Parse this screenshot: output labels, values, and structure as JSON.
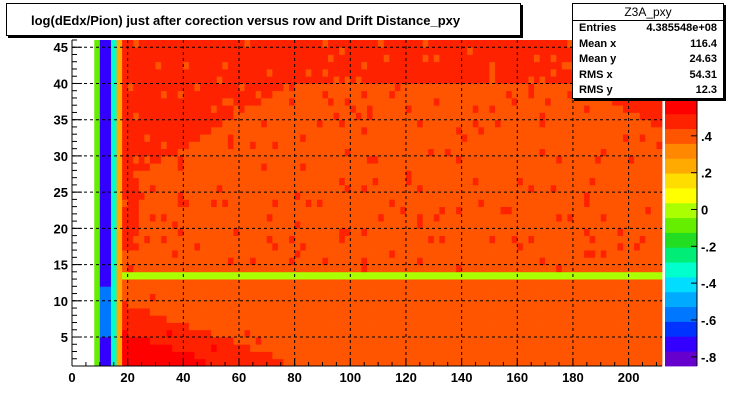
{
  "chart_data": {
    "type": "heatmap",
    "title": "log(dEdx/Pion) just after corection versus row and Drift Distance_pxy",
    "xlabel": "",
    "ylabel": "",
    "xlim": [
      0,
      212
    ],
    "ylim": [
      1,
      46
    ],
    "x_ticks": [
      0,
      20,
      40,
      60,
      80,
      100,
      120,
      140,
      160,
      180,
      200
    ],
    "y_ticks": [
      5,
      10,
      15,
      20,
      25,
      30,
      35,
      40,
      45
    ],
    "grid": true,
    "z_ticks": [
      0.4,
      0.2,
      0,
      -0.2,
      -0.4,
      -0.6,
      -0.8
    ],
    "zlim": [
      -0.85,
      0.6
    ],
    "color_scale": [
      "#6600cc",
      "#3300ff",
      "#0033ff",
      "#0077ff",
      "#00aaff",
      "#00ddff",
      "#00ffcc",
      "#00ee77",
      "#22dd22",
      "#66ee00",
      "#aaff00",
      "#ffff00",
      "#ffdd00",
      "#ffaa00",
      "#ff8800",
      "#ff5500",
      "#ff2200",
      "#ff0000"
    ],
    "regions": [
      {
        "x": [
          10,
          13
        ],
        "y": [
          1,
          46
        ],
        "z": -0.75,
        "note_text": ""
      },
      {
        "x": [
          8,
          10
        ],
        "y": [
          1,
          46
        ],
        "z": -0.05
      },
      {
        "x": [
          13,
          15
        ],
        "y": [
          1,
          46
        ],
        "z": -0.3
      },
      {
        "x": [
          15,
          17
        ],
        "y": [
          1,
          46
        ],
        "z": 0.25
      },
      {
        "x": [
          17,
          212
        ],
        "y": [
          13,
          14
        ],
        "z": 0.0
      },
      {
        "x": [
          17,
          212
        ],
        "y": [
          14,
          46
        ],
        "z": 0.4
      },
      {
        "x": [
          17,
          212
        ],
        "y": [
          1,
          13
        ],
        "z": 0.45
      },
      {
        "x": [
          17,
          212
        ],
        "y": [
          1,
          13
        ],
        "z": 0.6,
        "shape": "high-density-left"
      }
    ],
    "stats": {
      "name": "Z3A_pxy",
      "entries_label": "Entries",
      "entries": "4.385548e+08",
      "mean_x_label": "Mean x",
      "mean_x": "116.4",
      "mean_y_label": "Mean y",
      "mean_y": "24.63",
      "rms_x_label": "RMS x",
      "rms_x": "54.31",
      "rms_y_label": "RMS y",
      "rms_y": "12.3"
    }
  }
}
